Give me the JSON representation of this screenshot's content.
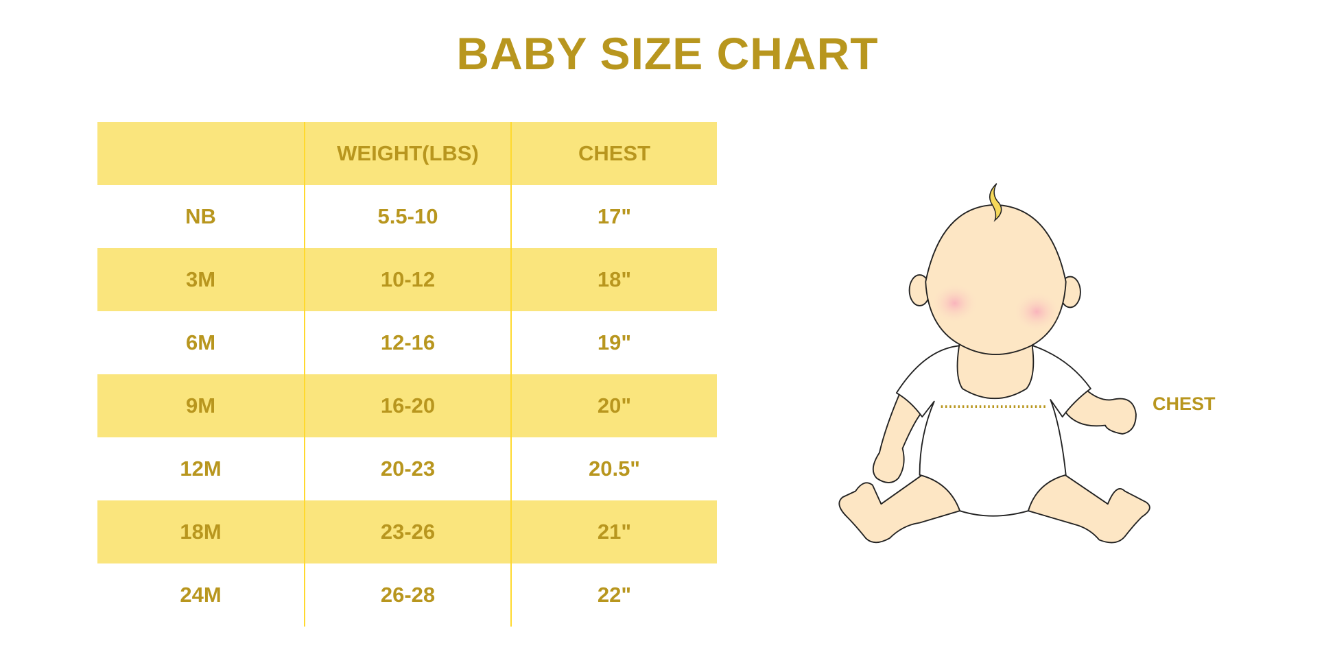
{
  "title": "BABY SIZE CHART",
  "table": {
    "headers": [
      "",
      "WEIGHT(LBS)",
      "CHEST"
    ],
    "rows": [
      [
        "NB",
        "5.5-10",
        "17\""
      ],
      [
        "3M",
        "10-12",
        "18\""
      ],
      [
        "6M",
        "12-16",
        "19\""
      ],
      [
        "9M",
        "16-20",
        "20\""
      ],
      [
        "12M",
        "20-23",
        "20.5\""
      ],
      [
        "18M",
        "23-26",
        "21\""
      ],
      [
        "24M",
        "26-28",
        "22\""
      ]
    ]
  },
  "illustration": {
    "label": "CHEST"
  },
  "colors": {
    "text": "#B8961E",
    "band": "#FAE57D",
    "divider": "#FFD92E",
    "skin": "#FDE6C4",
    "cheek": "#F9B4BC"
  }
}
